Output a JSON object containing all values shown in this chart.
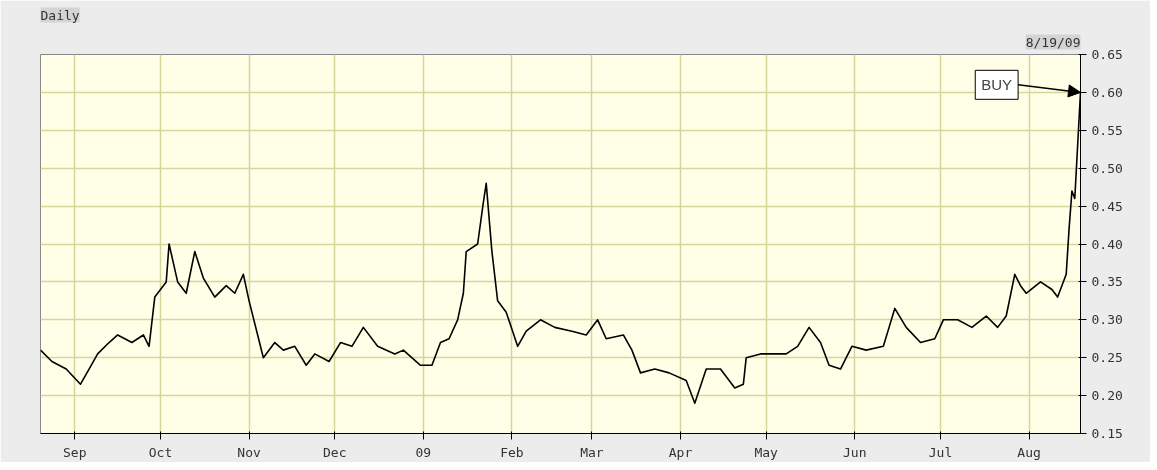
{
  "chart_data": {
    "type": "line",
    "title": "Daily",
    "annotations": [
      "8/19/09",
      {
        "text": "BUY",
        "x": "2009-08-19",
        "y": 0.6
      }
    ],
    "series": [
      {
        "color": "#000000",
        "x": [
          "2008-08-20",
          "2008-08-24",
          "2008-08-29",
          "2008-09-03",
          "2008-09-06",
          "2008-09-09",
          "2008-09-13",
          "2008-09-16",
          "2008-09-21",
          "2008-09-25",
          "2008-09-27",
          "2008-09-29",
          "2008-10-03",
          "2008-10-04",
          "2008-10-07",
          "2008-10-10",
          "2008-10-13",
          "2008-10-16",
          "2008-10-20",
          "2008-10-24",
          "2008-10-27",
          "2008-10-30",
          "2008-11-01",
          "2008-11-04",
          "2008-11-06",
          "2008-11-10",
          "2008-11-13",
          "2008-11-17",
          "2008-11-21",
          "2008-11-24",
          "2008-11-29",
          "2008-12-03",
          "2008-12-07",
          "2008-12-11",
          "2008-12-16",
          "2008-12-22",
          "2008-12-25",
          "2008-12-31",
          "2009-01-04",
          "2009-01-07",
          "2009-01-10",
          "2009-01-13",
          "2009-01-15",
          "2009-01-16",
          "2009-01-20",
          "2009-01-22",
          "2009-01-23",
          "2009-01-25",
          "2009-01-27",
          "2009-01-30",
          "2009-02-03",
          "2009-02-06",
          "2009-02-11",
          "2009-02-16",
          "2009-02-22",
          "2009-02-27",
          "2009-03-03",
          "2009-03-06",
          "2009-03-12",
          "2009-03-15",
          "2009-03-18",
          "2009-03-23",
          "2009-03-28",
          "2009-04-03",
          "2009-04-06",
          "2009-04-10",
          "2009-04-15",
          "2009-04-20",
          "2009-04-23",
          "2009-04-24",
          "2009-04-29",
          "2009-05-04",
          "2009-05-08",
          "2009-05-12",
          "2009-05-16",
          "2009-05-20",
          "2009-05-23",
          "2009-05-27",
          "2009-05-31",
          "2009-06-05",
          "2009-06-11",
          "2009-06-13",
          "2009-06-15",
          "2009-06-19",
          "2009-06-24",
          "2009-06-29",
          "2009-07-02",
          "2009-07-07",
          "2009-07-12",
          "2009-07-17",
          "2009-07-21",
          "2009-07-24",
          "2009-07-27",
          "2009-07-29",
          "2009-07-31",
          "2009-08-05",
          "2009-08-09",
          "2009-08-11",
          "2009-08-14",
          "2009-08-15",
          "2009-08-16",
          "2009-08-17",
          "2009-08-19"
        ],
        "values": [
          0.26,
          0.245,
          0.235,
          0.215,
          0.235,
          0.255,
          0.27,
          0.28,
          0.27,
          0.28,
          0.265,
          0.33,
          0.35,
          0.4,
          0.35,
          0.335,
          0.39,
          0.355,
          0.33,
          0.345,
          0.335,
          0.36,
          0.325,
          0.28,
          0.25,
          0.27,
          0.26,
          0.265,
          0.24,
          0.255,
          0.245,
          0.27,
          0.265,
          0.29,
          0.265,
          0.255,
          0.26,
          0.24,
          0.24,
          0.27,
          0.275,
          0.3,
          0.335,
          0.39,
          0.4,
          0.455,
          0.48,
          0.39,
          0.325,
          0.31,
          0.265,
          0.285,
          0.3,
          0.29,
          0.285,
          0.28,
          0.3,
          0.275,
          0.28,
          0.26,
          0.23,
          0.235,
          0.23,
          0.22,
          0.19,
          0.235,
          0.235,
          0.21,
          0.215,
          0.25,
          0.255,
          0.255,
          0.255,
          0.265,
          0.29,
          0.27,
          0.24,
          0.235,
          0.265,
          0.26,
          0.265,
          0.29,
          0.315,
          0.29,
          0.27,
          0.275,
          0.3,
          0.3,
          0.29,
          0.305,
          0.29,
          0.305,
          0.36,
          0.345,
          0.335,
          0.35,
          0.34,
          0.33,
          0.36,
          0.42,
          0.47,
          0.46,
          0.6
        ]
      }
    ],
    "xlim": [
      "2008-08-20",
      "2009-08-19"
    ],
    "xticks": [
      {
        "value": "2008-09-01",
        "label": "Sep"
      },
      {
        "value": "2008-10-01",
        "label": "Oct"
      },
      {
        "value": "2008-11-01",
        "label": "Nov"
      },
      {
        "value": "2008-12-01",
        "label": "Dec"
      },
      {
        "value": "2009-01-01",
        "label": "09"
      },
      {
        "value": "2009-02-01",
        "label": "Feb"
      },
      {
        "value": "2009-03-01",
        "label": "Mar"
      },
      {
        "value": "2009-04-01",
        "label": "Apr"
      },
      {
        "value": "2009-05-01",
        "label": "May"
      },
      {
        "value": "2009-06-01",
        "label": "Jun"
      },
      {
        "value": "2009-07-01",
        "label": "Jul"
      },
      {
        "value": "2009-08-01",
        "label": "Aug"
      }
    ],
    "ylim": [
      0.15,
      0.65
    ],
    "yticks": [
      {
        "value": 0.15,
        "label": "0.15"
      },
      {
        "value": 0.2,
        "label": "0.20"
      },
      {
        "value": 0.25,
        "label": "0.25"
      },
      {
        "value": 0.3,
        "label": "0.30"
      },
      {
        "value": 0.35,
        "label": "0.35"
      },
      {
        "value": 0.4,
        "label": "0.40"
      },
      {
        "value": 0.45,
        "label": "0.45"
      },
      {
        "value": 0.5,
        "label": "0.50"
      },
      {
        "value": 0.55,
        "label": "0.55"
      },
      {
        "value": 0.6,
        "label": "0.60"
      },
      {
        "value": 0.65,
        "label": "0.65"
      }
    ],
    "grid": true,
    "marker": "none",
    "line_style": "solid"
  }
}
